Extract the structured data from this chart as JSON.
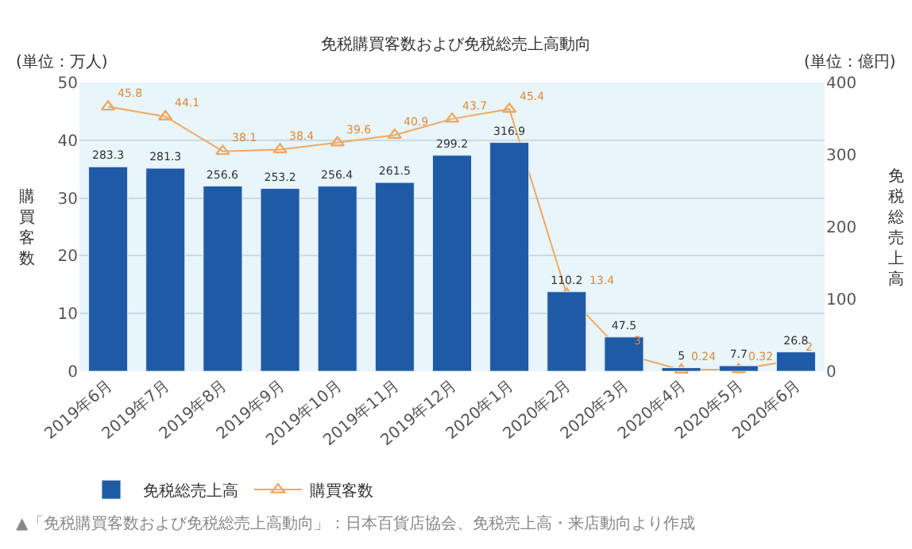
{
  "chart_data": {
    "type": "line",
    "title": "免税購買客数および免税総売上高動向",
    "categories": [
      "2019年6月",
      "2019年7月",
      "2019年8月",
      "2019年9月",
      "2019年10月",
      "2019年11月",
      "2019年12月",
      "2020年1月",
      "2020年2月",
      "2020年3月",
      "2020年4月",
      "2020年5月",
      "2020年6月"
    ],
    "series": [
      {
        "name": "購買客数",
        "axis": "y",
        "color": "#f0a860",
        "marker": "triangle",
        "values": [
          45.8,
          44.1,
          38.1,
          38.4,
          39.6,
          40.9,
          43.7,
          45.4,
          13.4,
          3,
          0.24,
          0.32,
          2
        ]
      },
      {
        "name": "免税総売上高",
        "type": "bar",
        "axis": "y2",
        "color": "#1f5aa6",
        "values": [
          283.3,
          281.3,
          256.6,
          253.2,
          256.4,
          261.5,
          299.2,
          316.9,
          110.2,
          47.5,
          5,
          7.7,
          26.8
        ]
      }
    ],
    "ylabel": "購買客数",
    "y2label": "免税総売上高",
    "ylim": [
      0,
      50
    ],
    "yticks": [
      0,
      10,
      20,
      30,
      40,
      50
    ],
    "y2lim": [
      0,
      400
    ],
    "y2ticks": [
      0,
      100,
      200,
      300,
      400
    ],
    "data_labels": true,
    "grid": "y",
    "legend": "bottom left",
    "annotations": [
      "(単位：万人)",
      "(単位：億円)",
      "▲「免税購買客数および免税総売上高動向」：日本百貨店協会、免税売上高・来店動向より作成"
    ]
  }
}
